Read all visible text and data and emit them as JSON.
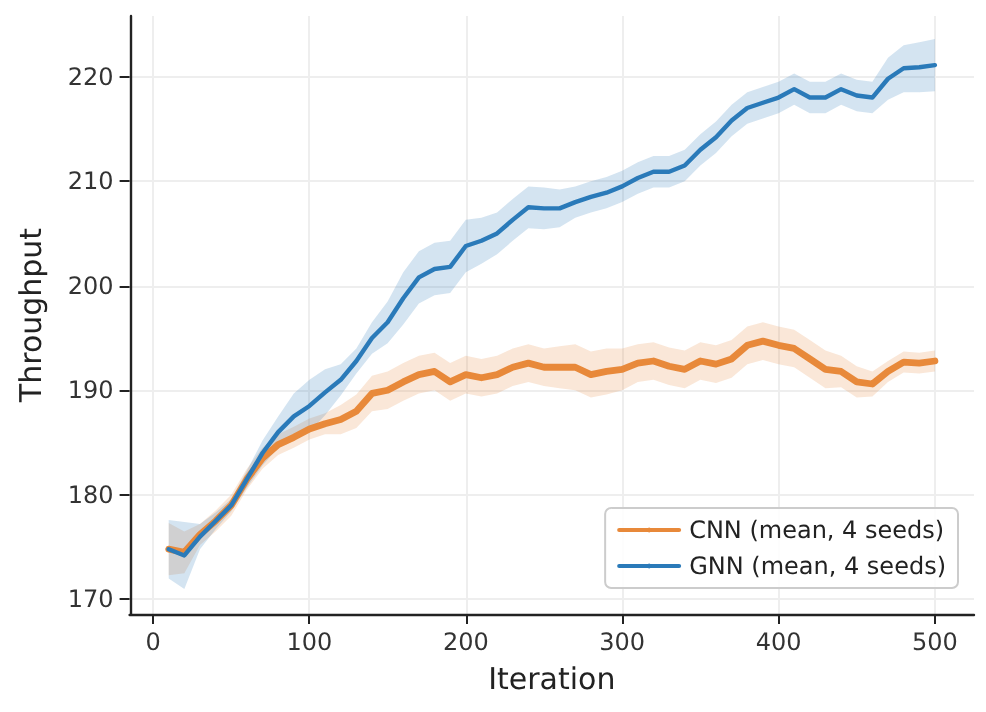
{
  "chart_data": {
    "type": "line",
    "xlabel": "Iteration",
    "ylabel": "Throughput",
    "x": [
      10,
      20,
      30,
      40,
      50,
      60,
      70,
      80,
      90,
      100,
      110,
      120,
      130,
      140,
      150,
      160,
      170,
      180,
      190,
      200,
      210,
      220,
      230,
      240,
      250,
      260,
      270,
      280,
      290,
      300,
      310,
      320,
      330,
      340,
      350,
      360,
      370,
      380,
      390,
      400,
      410,
      420,
      430,
      440,
      450,
      460,
      470,
      480,
      490,
      500
    ],
    "series": [
      {
        "name": "CNN (mean, 4 seeds)",
        "color": "#e8893a",
        "values": [
          174.8,
          174.5,
          176.2,
          177.5,
          179,
          181.5,
          183.5,
          184.8,
          185.5,
          186.3,
          186.8,
          187.2,
          188,
          189.7,
          190,
          190.8,
          191.5,
          191.8,
          190.8,
          191.5,
          191.2,
          191.5,
          192.2,
          192.6,
          192.2,
          192.2,
          192.2,
          191.5,
          191.8,
          192,
          192.6,
          192.8,
          192.3,
          192,
          192.8,
          192.5,
          193,
          194.3,
          194.7,
          194.3,
          194,
          193,
          192,
          191.8,
          190.8,
          190.6,
          191.8,
          192.7,
          192.6,
          192.8
        ],
        "lower": [
          172.3,
          172.5,
          175.2,
          176.5,
          178.0,
          180.5,
          182.5,
          183.8,
          184.5,
          185.3,
          185.8,
          185.8,
          186.4,
          188.0,
          188.2,
          189.0,
          189.7,
          190.0,
          189.0,
          189.7,
          189.4,
          189.7,
          190.4,
          190.8,
          190.4,
          190.2,
          190.0,
          189.3,
          189.6,
          190.0,
          190.8,
          191.0,
          190.5,
          190.2,
          191.0,
          190.7,
          191.2,
          192.5,
          192.9,
          192.5,
          192.2,
          191.2,
          190.2,
          190.3,
          189.3,
          189.4,
          190.8,
          191.7,
          191.6,
          191.8
        ],
        "upper": [
          177.3,
          176.5,
          177.2,
          178.5,
          180.0,
          182.5,
          184.5,
          185.8,
          186.5,
          187.3,
          187.8,
          188.6,
          189.6,
          191.4,
          191.8,
          192.6,
          193.3,
          193.6,
          192.6,
          193.3,
          193.0,
          193.3,
          194.0,
          194.4,
          194.0,
          194.2,
          194.4,
          193.7,
          194.0,
          194.0,
          194.4,
          194.6,
          194.1,
          193.8,
          194.6,
          194.3,
          194.8,
          196.1,
          196.5,
          196.1,
          195.8,
          194.8,
          193.8,
          193.3,
          192.3,
          191.8,
          192.8,
          193.7,
          193.6,
          193.8
        ]
      },
      {
        "name": "GNN (mean, 4 seeds)",
        "color": "#2a7ab9",
        "values": [
          174.8,
          174.2,
          176,
          177.5,
          179,
          181.5,
          184,
          186,
          187.5,
          188.5,
          189.8,
          191,
          192.8,
          195,
          196.5,
          198.8,
          200.8,
          201.6,
          201.8,
          203.8,
          204.3,
          205,
          206.3,
          207.5,
          207.4,
          207.4,
          208,
          208.5,
          208.9,
          209.5,
          210.3,
          210.9,
          210.9,
          211.5,
          213,
          214.2,
          215.8,
          217,
          217.5,
          218,
          218.8,
          218,
          218,
          218.8,
          218.2,
          218,
          219.8,
          220.8,
          220.9,
          221.1
        ],
        "lower": [
          172.0,
          171.0,
          174.8,
          176.7,
          178.4,
          180.7,
          182.8,
          184.5,
          185.3,
          186.0,
          187.6,
          189.5,
          191.6,
          193.5,
          194.5,
          196.3,
          198.3,
          199.1,
          199.3,
          201.3,
          202.1,
          203.0,
          204.3,
          205.5,
          205.4,
          205.6,
          206.5,
          207.0,
          207.4,
          208.0,
          208.8,
          209.4,
          209.4,
          210.0,
          211.5,
          212.7,
          214.3,
          215.5,
          216.0,
          216.5,
          217.3,
          216.5,
          216.5,
          217.3,
          216.7,
          216.5,
          217.8,
          218.5,
          218.5,
          218.6
        ],
        "upper": [
          177.6,
          177.4,
          177.2,
          178.3,
          179.6,
          182.3,
          185.2,
          187.5,
          189.7,
          191.0,
          192.0,
          192.5,
          194.0,
          196.5,
          198.5,
          201.3,
          203.3,
          204.1,
          204.3,
          206.3,
          206.5,
          207.0,
          208.3,
          209.5,
          209.4,
          209.2,
          209.5,
          210.0,
          210.4,
          211.0,
          211.8,
          212.4,
          212.4,
          213.0,
          214.5,
          215.7,
          217.3,
          218.5,
          219.0,
          219.5,
          220.3,
          219.5,
          219.5,
          220.3,
          219.7,
          219.5,
          221.8,
          223.0,
          223.3,
          223.6
        ]
      }
    ],
    "xlim": [
      -15,
      525
    ],
    "xticks": [
      0,
      100,
      200,
      300,
      400,
      500
    ],
    "ylim": [
      168.6,
      225.8
    ],
    "yticks": [
      170,
      180,
      190,
      200,
      210,
      220
    ],
    "grid": true,
    "legend": "bottom right",
    "marker": "none",
    "line_style": "solid"
  }
}
